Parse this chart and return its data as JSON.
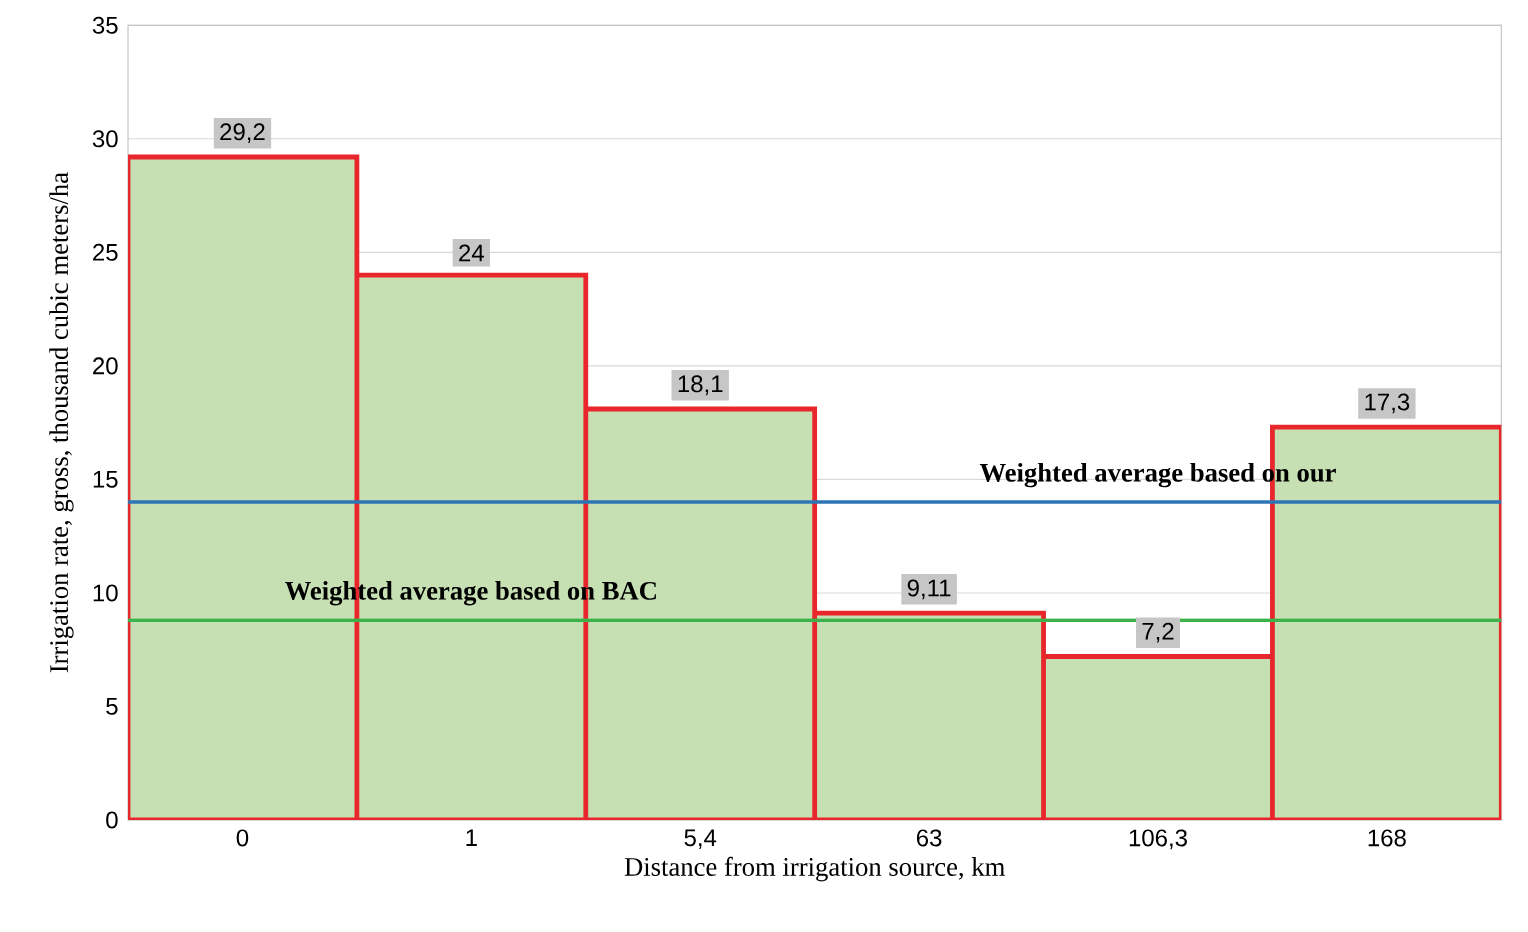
{
  "chart_data": {
    "type": "bar",
    "xlabel": "Distance from irrigation source, km",
    "ylabel": "Irrigation rate, gross, thousand cubic meters/ha",
    "categories": [
      "0",
      "1",
      "5,4",
      "63",
      "106,3",
      "168"
    ],
    "values": [
      29.2,
      24,
      18.1,
      9.11,
      7.2,
      17.3
    ],
    "value_labels": [
      "29,2",
      "24",
      "18,1",
      "9,11",
      "7,2",
      "17,3"
    ],
    "color": "#c6e0b4",
    "ylim": [
      0,
      35
    ],
    "yticks": [
      0,
      5,
      10,
      15,
      20,
      25,
      30,
      35
    ],
    "grid": "y",
    "ref_lines": [
      {
        "axis": "y",
        "value": 14,
        "label": "Weighted average based on our",
        "color": "#2e75b6"
      },
      {
        "axis": "y",
        "value": 8.8,
        "label": "Weighted average based on BAC",
        "color": "#3bb34a"
      }
    ]
  }
}
